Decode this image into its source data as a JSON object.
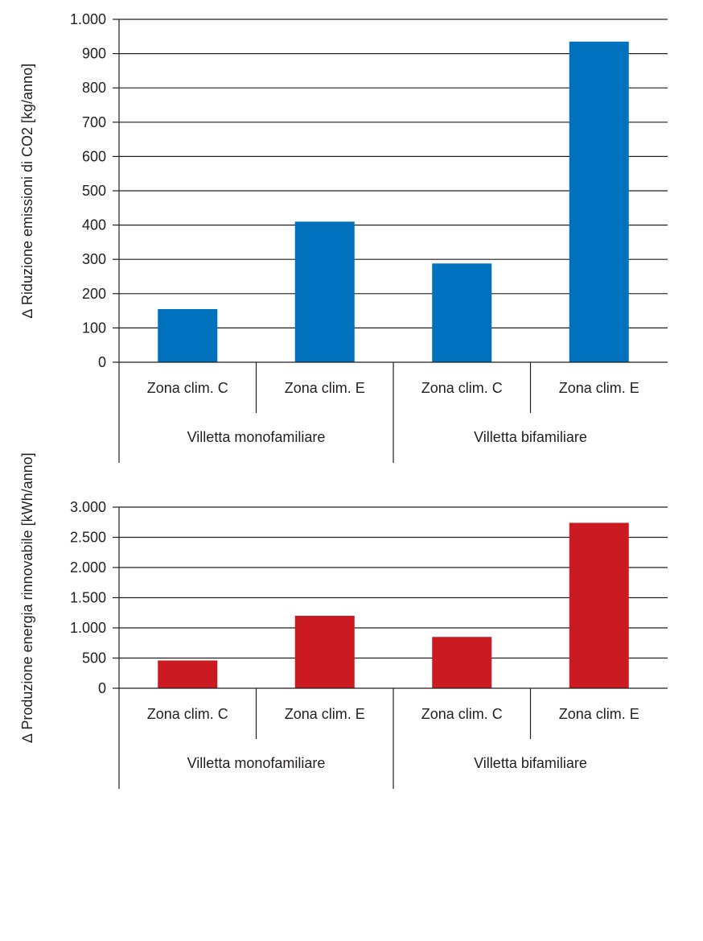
{
  "colors": {
    "chart1_bar": "#0071bc",
    "chart2_bar": "#cc1a22",
    "axis": "#231f20"
  },
  "chart_data": [
    {
      "type": "bar",
      "ylabel": "∆ Riduzione emissioni di CO2 [kg/anno]",
      "ylim": [
        0,
        1000
      ],
      "yticks": [
        0,
        100,
        200,
        300,
        400,
        500,
        600,
        700,
        800,
        900,
        1000
      ],
      "ytick_labels": [
        "0",
        "100",
        "200",
        "300",
        "400",
        "500",
        "600",
        "700",
        "800",
        "900",
        "1.000"
      ],
      "categories": [
        "Zona clim. C",
        "Zona clim. E",
        "Zona clim. C",
        "Zona clim. E"
      ],
      "groups": [
        "Villetta monofamiliare",
        "Villetta bifamiliare"
      ],
      "values": [
        155,
        410,
        288,
        935
      ],
      "grid": true
    },
    {
      "type": "bar",
      "ylabel": "∆ Produzione energia rinnovabile [kWh/anno]",
      "ylim": [
        0,
        3000
      ],
      "yticks": [
        0,
        500,
        1000,
        1500,
        2000,
        2500,
        3000
      ],
      "ytick_labels": [
        "0",
        "500",
        "1.000",
        "1.500",
        "2.000",
        "2.500",
        "3.000"
      ],
      "categories": [
        "Zona clim. C",
        "Zona clim. E",
        "Zona clim. C",
        "Zona clim. E"
      ],
      "groups": [
        "Villetta monofamiliare",
        "Villetta bifamiliare"
      ],
      "values": [
        460,
        1200,
        850,
        2740
      ],
      "grid": true
    }
  ]
}
